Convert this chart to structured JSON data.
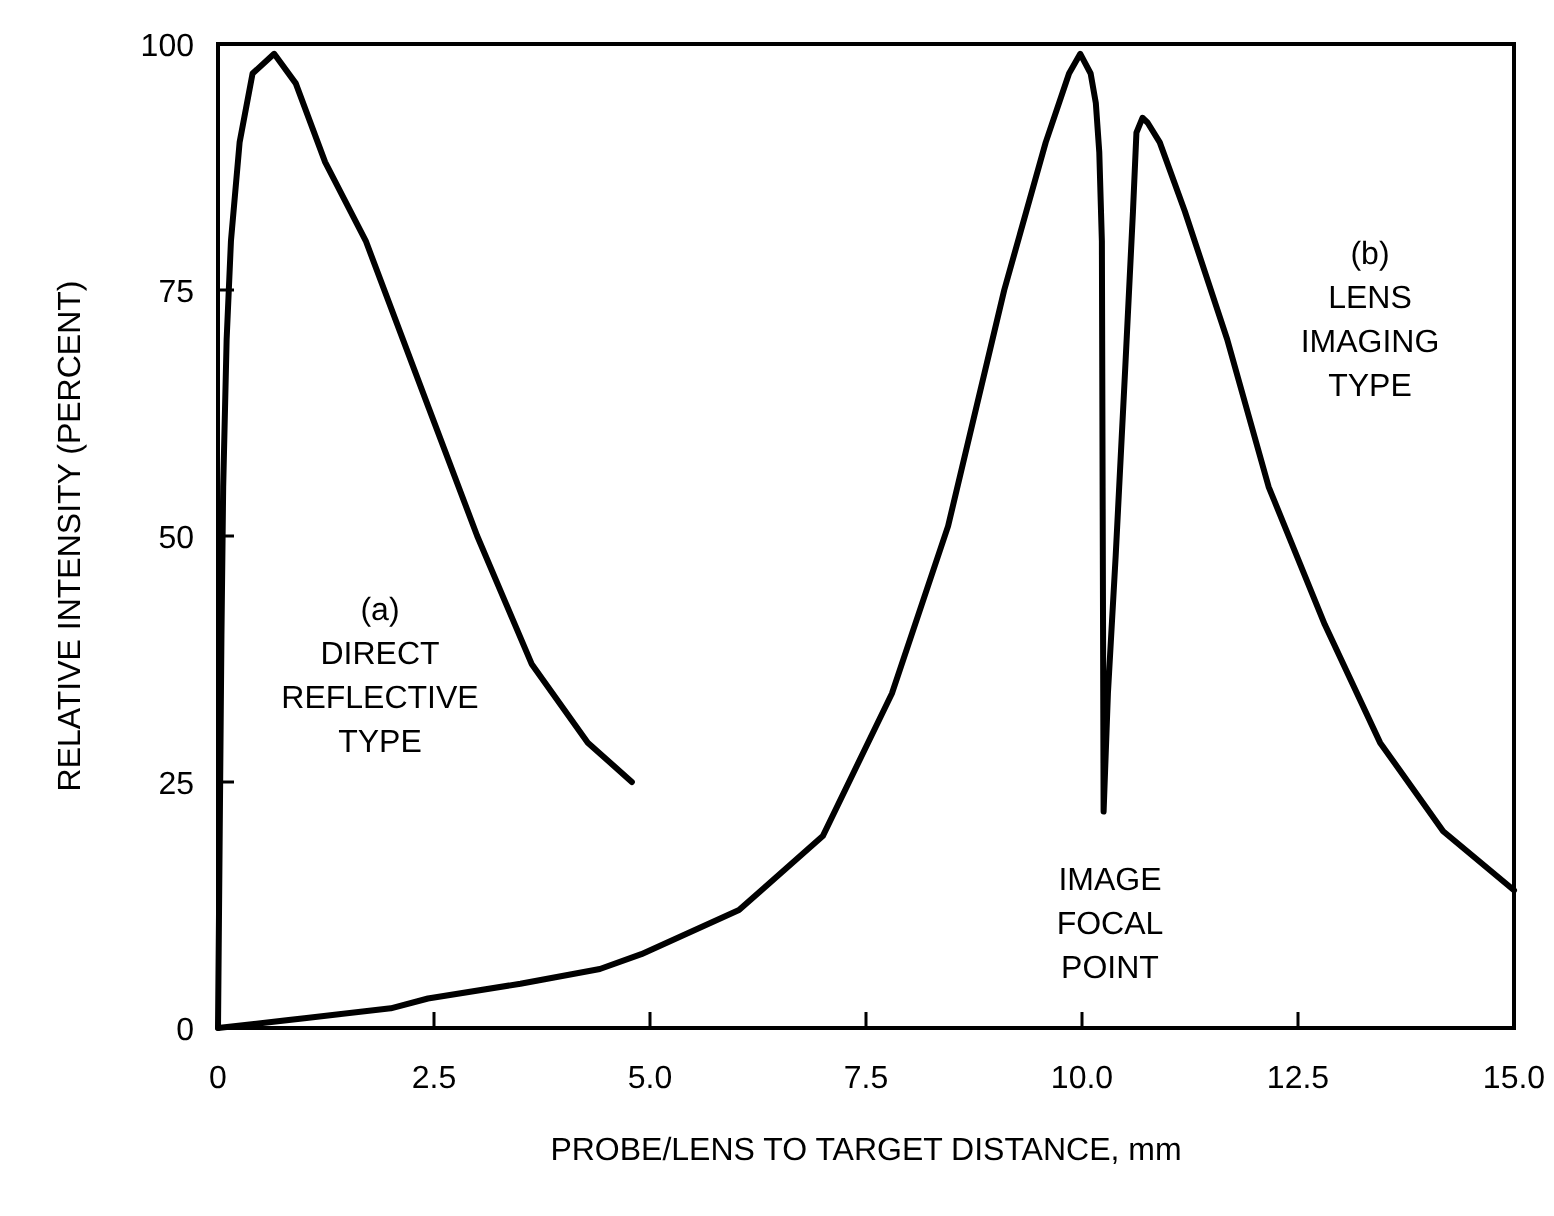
{
  "chart_data": {
    "type": "line",
    "xlabel": "PROBE/LENS TO TARGET DISTANCE, mm",
    "ylabel": "RELATIVE INTENSITY (PERCENT)",
    "xlim": [
      0,
      15
    ],
    "ylim": [
      0,
      100
    ],
    "xticks": [
      0,
      2.5,
      {
        "value": 5,
        "label": "5.0"
      },
      7.5,
      {
        "value": 10,
        "label": "10.0"
      },
      12.5,
      {
        "value": 15,
        "label": "15.0"
      }
    ],
    "yticks": [
      0,
      25,
      50,
      75,
      100
    ],
    "grid": false,
    "marker": "none",
    "line_style": "solid",
    "series": [
      {
        "color": "#000000",
        "x": [
          0,
          0.02,
          0.04,
          0.06,
          0.1,
          0.15,
          0.25,
          0.4,
          0.65,
          0.9,
          1.24,
          1.71,
          2.44,
          3.0,
          3.63,
          4.28,
          4.79
        ],
        "values": [
          0,
          20,
          40,
          55,
          70,
          80,
          90,
          97,
          99,
          96,
          88,
          80,
          63,
          50,
          37,
          29,
          25
        ]
      },
      {
        "color": "#000000",
        "x": [
          0,
          1,
          2,
          2.43,
          3.5,
          4.42,
          4.9,
          6.03,
          7.0,
          7.8,
          8.45,
          9.1,
          9.58,
          9.85,
          9.98,
          10.1,
          10.16,
          10.2,
          10.23,
          10.25,
          10.3,
          10.39,
          10.5,
          10.59,
          10.63,
          10.7,
          10.76,
          10.9,
          11.19,
          11.68,
          12.16,
          12.81,
          13.45,
          14.18,
          15.0
        ],
        "values": [
          0,
          1,
          2,
          3,
          4.5,
          6,
          7.5,
          12,
          19.5,
          34,
          51,
          75,
          90,
          97,
          99,
          97,
          94,
          89,
          80,
          22,
          34,
          48,
          67,
          83,
          91,
          92.5,
          92,
          90,
          83,
          70,
          55,
          41,
          29,
          20,
          14
        ]
      }
    ],
    "annotations": [
      "(a)\nDIRECT\nREFLECTIVE\nTYPE",
      "(b)\nLENS\nIMAGING\nTYPE",
      "IMAGE\nFOCAL\nPOINT"
    ]
  }
}
